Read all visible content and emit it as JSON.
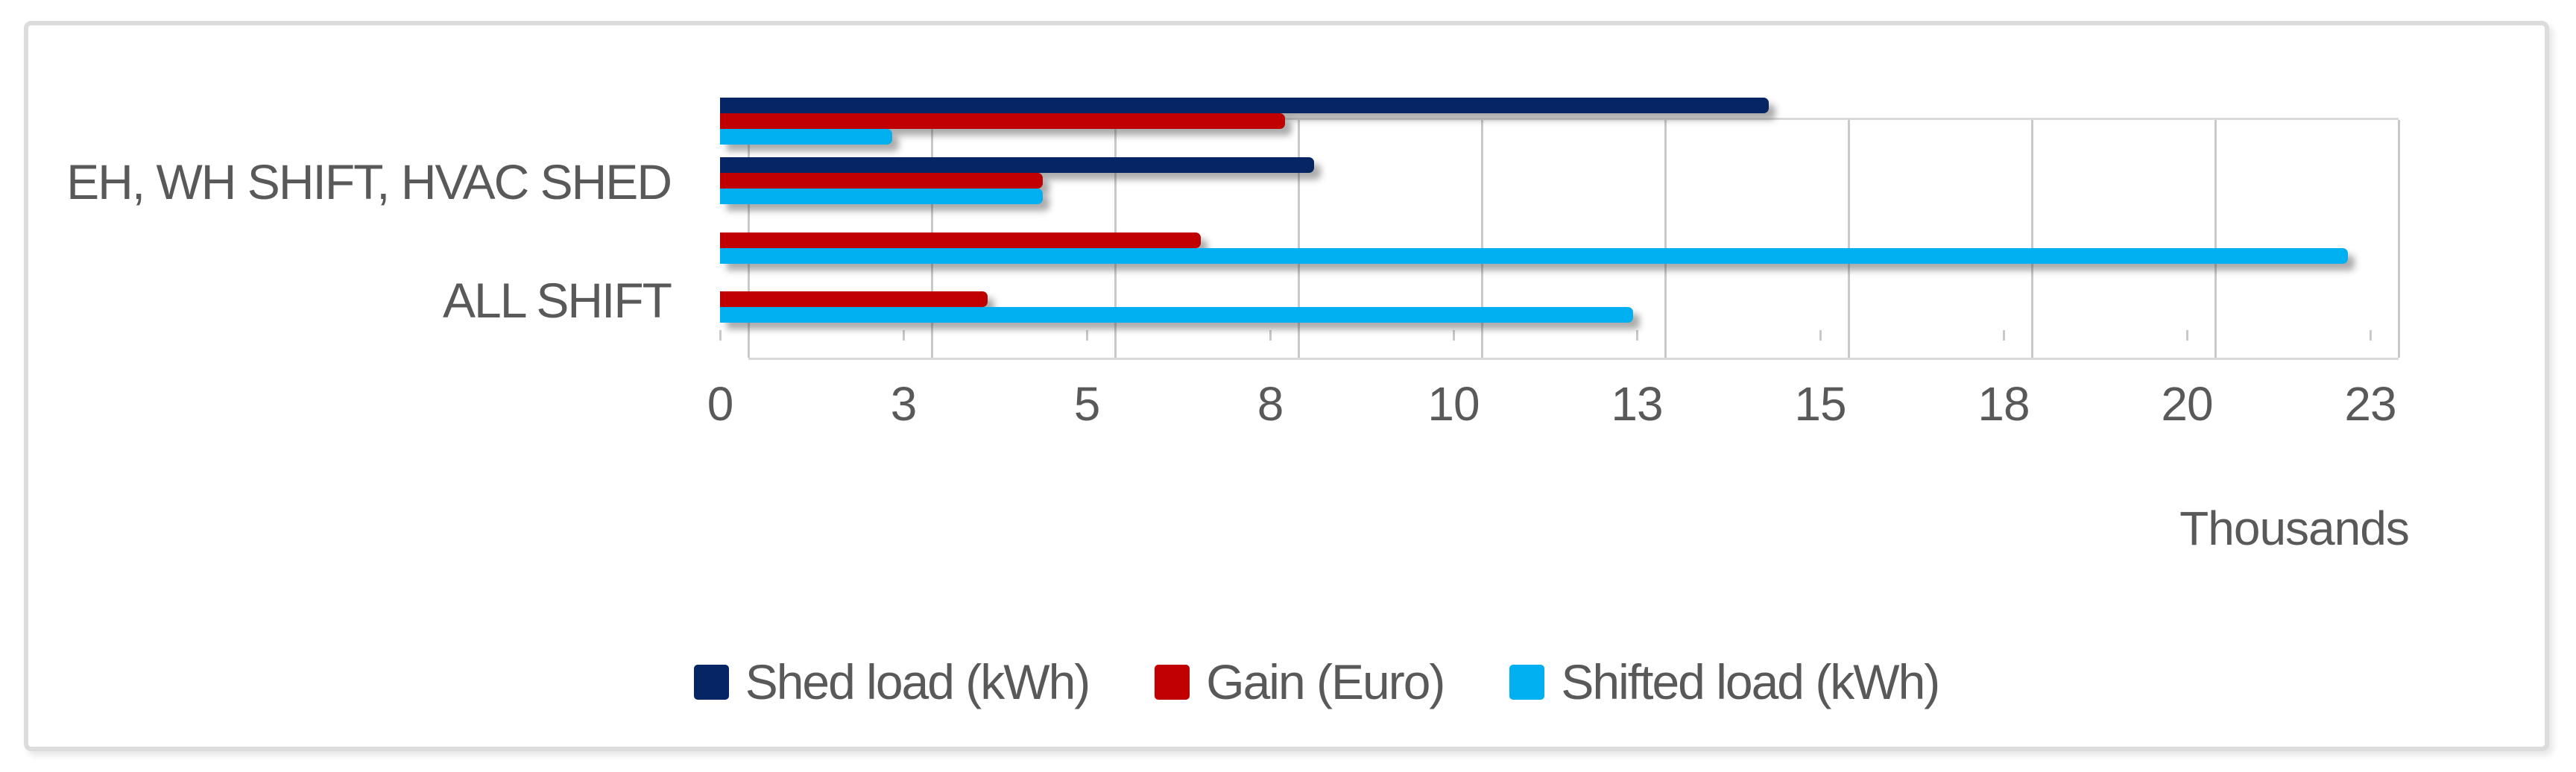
{
  "chart_data": {
    "type": "bar",
    "orientation": "horizontal",
    "title": "",
    "categories": [
      "",
      "EH, WH SHIFT, HVAC SHED",
      "",
      "ALL SHIFT"
    ],
    "series": [
      {
        "name": "Shed load (kWh)",
        "color": "#052564",
        "values": [
          14300,
          8100,
          0,
          0
        ]
      },
      {
        "name": "Gain (Euro)",
        "color": "#c00000",
        "values": [
          7700,
          4400,
          6550,
          3650
        ]
      },
      {
        "name": "Shifted load (kWh)",
        "color": "#00b0f0",
        "values": [
          2350,
          4400,
          22200,
          12450
        ]
      }
    ],
    "xlabel": "Thousands",
    "ylabel": "",
    "xlim": [
      0,
      22500
    ],
    "tick_interval": 2500,
    "tick_labels": [
      "0",
      "3",
      "5",
      "8",
      "10",
      "13",
      "15",
      "18",
      "20",
      "23"
    ],
    "grid": true,
    "legend_position": "bottom"
  },
  "colors": {
    "text": "#595959",
    "gridline": "#c9c9c9",
    "plot_border": "#d9d9d9",
    "card_border": "#dcdcdc",
    "background": "#ffffff"
  }
}
